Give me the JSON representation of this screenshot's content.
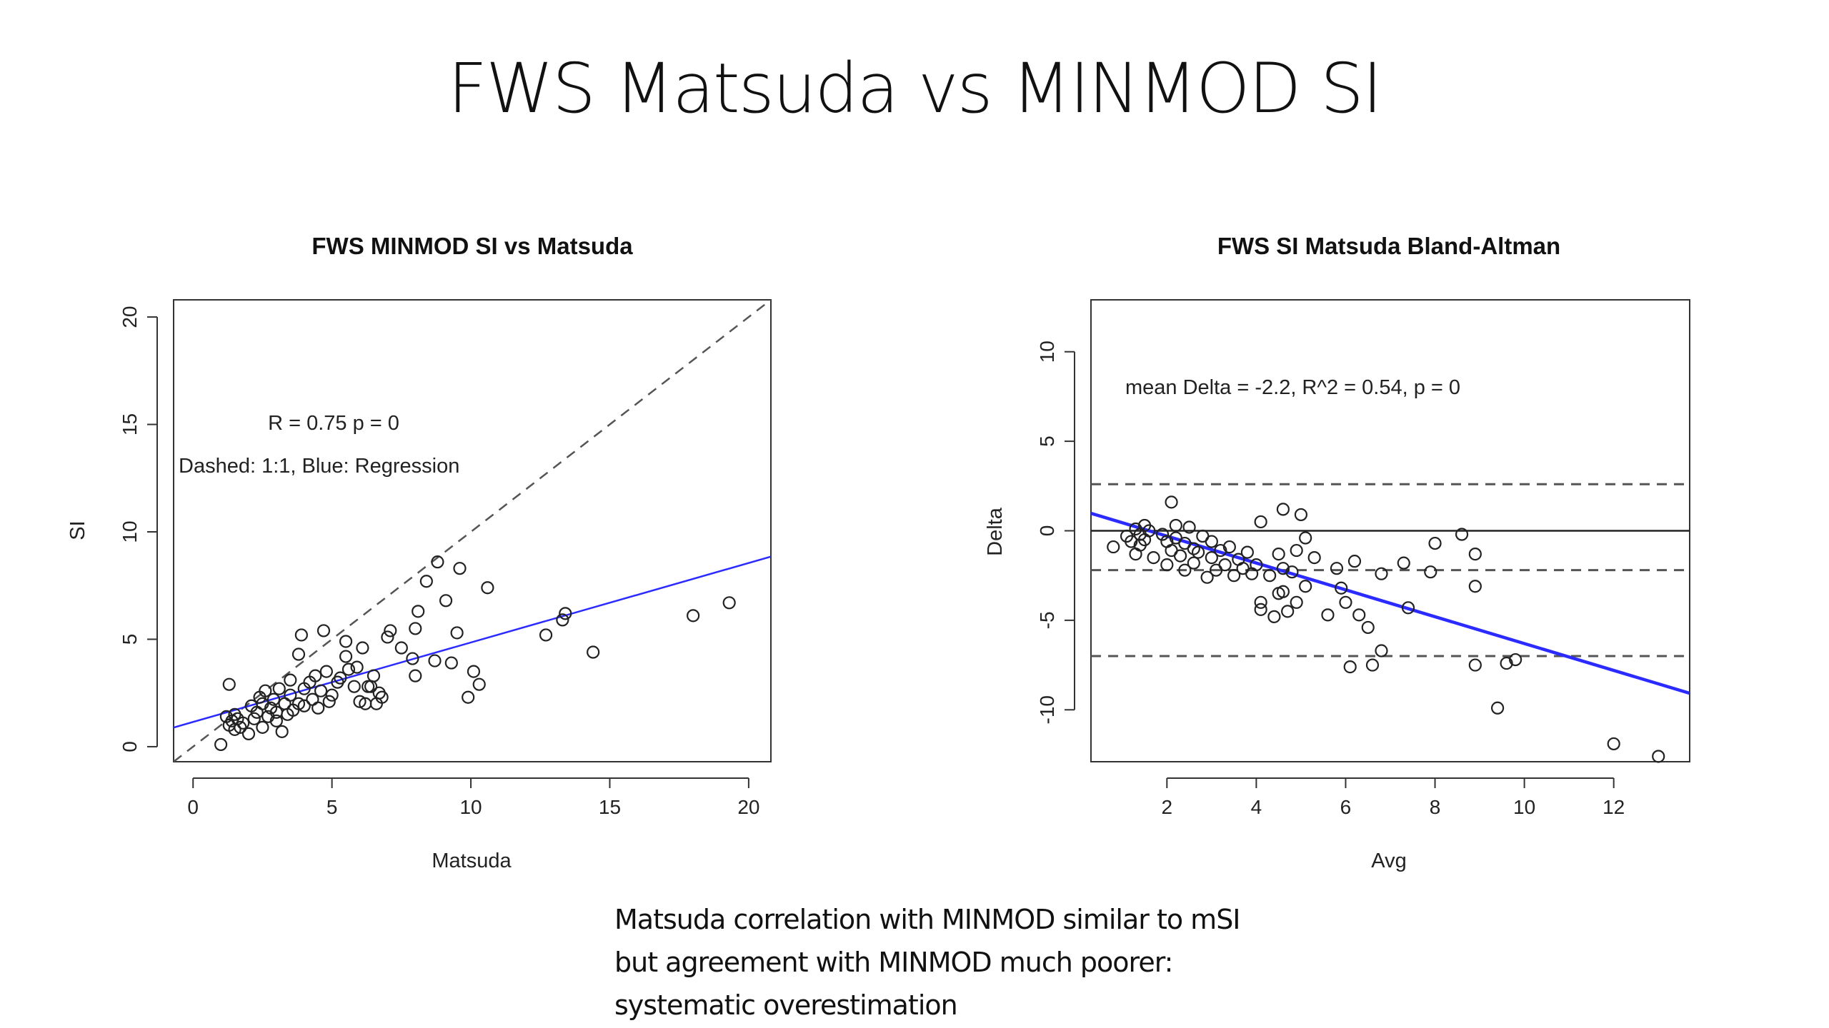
{
  "slide": {
    "title": "FWS Matsuda vs MINMOD SI",
    "caption": [
      "Matsuda correlation with MINMOD similar to mSI",
      "but agreement with MINMOD much poorer:",
      "systematic overestimation"
    ]
  },
  "colors": {
    "regression": "#2b2bff",
    "points": "#222222",
    "reference": "#555555"
  },
  "chart_data": [
    {
      "type": "scatter",
      "title": "FWS MINMOD SI vs Matsuda",
      "xlabel": "Matsuda",
      "ylabel": "SI",
      "xlim": [
        -0.7,
        20.8
      ],
      "ylim": [
        -0.7,
        20.8
      ],
      "xticks": [
        0,
        5,
        10,
        15,
        20
      ],
      "yticks": [
        0,
        5,
        10,
        15,
        20
      ],
      "annotations": [
        "R = 0.75 p = 0",
        "Dashed: 1:1, Blue: Regression"
      ],
      "reference_line": {
        "name": "1:1",
        "slope": 1,
        "intercept": 0,
        "style": "dashed"
      },
      "regression_line": {
        "name": "Regression",
        "slope": 0.37,
        "intercept": 1.15,
        "style": "solid",
        "color": "blue"
      },
      "points": [
        [
          1.0,
          0.1
        ],
        [
          1.3,
          2.9
        ],
        [
          1.2,
          1.4
        ],
        [
          1.3,
          1.0
        ],
        [
          1.4,
          1.2
        ],
        [
          1.5,
          0.8
        ],
        [
          1.5,
          1.5
        ],
        [
          1.6,
          1.3
        ],
        [
          1.7,
          0.9
        ],
        [
          1.8,
          1.1
        ],
        [
          2.0,
          0.6
        ],
        [
          2.1,
          1.9
        ],
        [
          2.2,
          1.3
        ],
        [
          2.3,
          1.6
        ],
        [
          2.4,
          2.3
        ],
        [
          2.5,
          0.9
        ],
        [
          2.5,
          2.0
        ],
        [
          2.6,
          2.6
        ],
        [
          2.7,
          1.4
        ],
        [
          2.8,
          1.8
        ],
        [
          2.9,
          2.2
        ],
        [
          3.0,
          1.2
        ],
        [
          3.0,
          1.6
        ],
        [
          3.1,
          2.7
        ],
        [
          3.2,
          0.7
        ],
        [
          3.3,
          2.0
        ],
        [
          3.4,
          1.5
        ],
        [
          3.5,
          3.1
        ],
        [
          3.5,
          2.4
        ],
        [
          3.6,
          1.7
        ],
        [
          3.8,
          2.0
        ],
        [
          3.8,
          4.3
        ],
        [
          3.9,
          5.2
        ],
        [
          4.0,
          2.7
        ],
        [
          4.0,
          1.9
        ],
        [
          4.2,
          3.0
        ],
        [
          4.3,
          2.2
        ],
        [
          4.4,
          3.3
        ],
        [
          4.5,
          1.8
        ],
        [
          4.6,
          2.6
        ],
        [
          4.7,
          5.4
        ],
        [
          4.8,
          3.5
        ],
        [
          4.9,
          2.1
        ],
        [
          5.0,
          2.4
        ],
        [
          5.2,
          3.0
        ],
        [
          5.3,
          3.2
        ],
        [
          5.5,
          4.9
        ],
        [
          5.5,
          4.2
        ],
        [
          5.6,
          3.6
        ],
        [
          5.8,
          2.8
        ],
        [
          5.9,
          3.7
        ],
        [
          6.0,
          2.1
        ],
        [
          6.1,
          4.6
        ],
        [
          6.2,
          2.0
        ],
        [
          6.3,
          2.8
        ],
        [
          6.4,
          2.8
        ],
        [
          6.5,
          3.3
        ],
        [
          6.6,
          2.0
        ],
        [
          6.7,
          2.5
        ],
        [
          6.8,
          2.3
        ],
        [
          7.0,
          5.1
        ],
        [
          7.1,
          5.4
        ],
        [
          7.5,
          4.6
        ],
        [
          7.9,
          4.1
        ],
        [
          8.0,
          5.5
        ],
        [
          8.0,
          3.3
        ],
        [
          8.1,
          6.3
        ],
        [
          8.4,
          7.7
        ],
        [
          8.8,
          8.6
        ],
        [
          8.7,
          4.0
        ],
        [
          9.1,
          6.8
        ],
        [
          9.3,
          3.9
        ],
        [
          9.5,
          5.3
        ],
        [
          9.6,
          8.3
        ],
        [
          9.9,
          2.3
        ],
        [
          10.1,
          3.5
        ],
        [
          10.3,
          2.9
        ],
        [
          10.6,
          7.4
        ],
        [
          12.7,
          5.2
        ],
        [
          13.3,
          5.9
        ],
        [
          13.4,
          6.2
        ],
        [
          14.4,
          4.4
        ],
        [
          18.0,
          6.1
        ],
        [
          19.3,
          6.7
        ]
      ]
    },
    {
      "type": "scatter",
      "title": "FWS SI Matsuda Bland-Altman",
      "xlabel": "Avg",
      "ylabel": "Delta",
      "xlim": [
        0.3,
        13.7
      ],
      "ylim": [
        -12.9,
        12.9
      ],
      "xticks": [
        2,
        4,
        6,
        8,
        10,
        12
      ],
      "yticks": [
        -10,
        -5,
        0,
        5,
        10
      ],
      "annotations": [
        "mean Delta = -2.2, R^2 = 0.54, p = 0"
      ],
      "zero_line": 0,
      "mean_line": -2.2,
      "limits_of_agreement": [
        2.6,
        -7.0
      ],
      "regression_line": {
        "slope": -0.75,
        "intercept": 1.2,
        "style": "solid",
        "color": "blue"
      },
      "points": [
        [
          0.8,
          -0.9
        ],
        [
          1.1,
          -0.3
        ],
        [
          1.2,
          -0.6
        ],
        [
          1.3,
          0.1
        ],
        [
          1.3,
          -1.3
        ],
        [
          1.4,
          -0.2
        ],
        [
          1.4,
          -0.8
        ],
        [
          1.5,
          0.3
        ],
        [
          1.5,
          -0.5
        ],
        [
          1.6,
          0.0
        ],
        [
          1.7,
          -1.5
        ],
        [
          1.9,
          -0.2
        ],
        [
          2.0,
          -1.9
        ],
        [
          2.0,
          -0.6
        ],
        [
          2.1,
          1.6
        ],
        [
          2.1,
          -1.1
        ],
        [
          2.2,
          0.3
        ],
        [
          2.2,
          -0.4
        ],
        [
          2.3,
          -1.4
        ],
        [
          2.4,
          -2.2
        ],
        [
          2.4,
          -0.7
        ],
        [
          2.5,
          0.2
        ],
        [
          2.6,
          -1.0
        ],
        [
          2.6,
          -1.8
        ],
        [
          2.7,
          -1.2
        ],
        [
          2.8,
          -0.3
        ],
        [
          2.9,
          -2.6
        ],
        [
          3.0,
          -0.6
        ],
        [
          3.0,
          -1.5
        ],
        [
          3.1,
          -2.2
        ],
        [
          3.2,
          -1.1
        ],
        [
          3.3,
          -1.9
        ],
        [
          3.4,
          -0.9
        ],
        [
          3.5,
          -2.5
        ],
        [
          3.6,
          -1.6
        ],
        [
          3.7,
          -2.1
        ],
        [
          3.8,
          -1.2
        ],
        [
          3.9,
          -2.4
        ],
        [
          4.0,
          -1.9
        ],
        [
          4.1,
          0.5
        ],
        [
          4.1,
          -4.0
        ],
        [
          4.1,
          -4.4
        ],
        [
          4.3,
          -2.5
        ],
        [
          4.4,
          -4.8
        ],
        [
          4.5,
          -1.3
        ],
        [
          4.5,
          -3.5
        ],
        [
          4.6,
          1.2
        ],
        [
          4.6,
          -2.1
        ],
        [
          4.6,
          -3.4
        ],
        [
          4.7,
          -4.5
        ],
        [
          4.8,
          -2.3
        ],
        [
          4.9,
          -1.1
        ],
        [
          4.9,
          -4.0
        ],
        [
          5.0,
          0.9
        ],
        [
          5.1,
          -0.4
        ],
        [
          5.1,
          -3.1
        ],
        [
          5.3,
          -1.5
        ],
        [
          5.6,
          -4.7
        ],
        [
          5.8,
          -2.1
        ],
        [
          5.9,
          -3.2
        ],
        [
          6.0,
          -4.0
        ],
        [
          6.1,
          -7.6
        ],
        [
          6.2,
          -1.7
        ],
        [
          6.3,
          -4.7
        ],
        [
          6.5,
          -5.4
        ],
        [
          6.6,
          -7.5
        ],
        [
          6.8,
          -2.4
        ],
        [
          6.8,
          -6.7
        ],
        [
          7.3,
          -1.8
        ],
        [
          7.4,
          -4.3
        ],
        [
          7.9,
          -2.3
        ],
        [
          8.0,
          -0.7
        ],
        [
          8.6,
          -0.2
        ],
        [
          8.9,
          -1.3
        ],
        [
          8.9,
          -3.1
        ],
        [
          8.9,
          -7.5
        ],
        [
          9.4,
          -9.9
        ],
        [
          9.6,
          -7.4
        ],
        [
          9.8,
          -7.2
        ],
        [
          12.0,
          -11.9
        ],
        [
          13.0,
          -12.6
        ]
      ]
    }
  ]
}
